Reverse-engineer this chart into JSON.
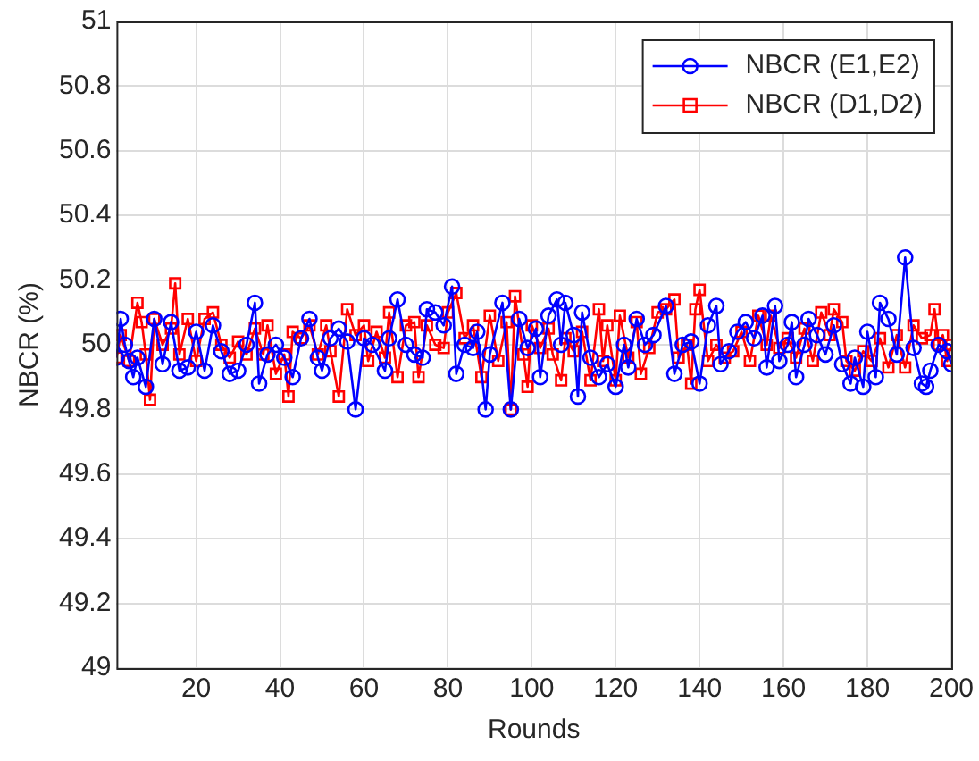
{
  "chart_data": {
    "type": "line",
    "xlabel": "Rounds",
    "ylabel": "NBCR (%)",
    "xlim": [
      1,
      200
    ],
    "xticks": [
      20,
      40,
      60,
      80,
      100,
      120,
      140,
      160,
      180,
      200
    ],
    "ylim": [
      49,
      51
    ],
    "yticks": [
      49,
      49.2,
      49.4,
      49.6,
      49.8,
      50,
      50.2,
      50.4,
      50.6,
      50.8,
      51
    ],
    "grid": true,
    "legend": "top right",
    "line_style": "solid",
    "series": [
      {
        "name": "NBCR (E1,E2)",
        "color": "#0000ff",
        "marker": "circle",
        "x": [
          1,
          2,
          3,
          4,
          5,
          6,
          8,
          10,
          12,
          14,
          16,
          18,
          20,
          22,
          24,
          26,
          28,
          30,
          32,
          34,
          35,
          37,
          39,
          41,
          43,
          45,
          47,
          49,
          50,
          52,
          54,
          56,
          58,
          60,
          62,
          65,
          66,
          68,
          70,
          72,
          74,
          75,
          77,
          79,
          81,
          82,
          84,
          86,
          87,
          89,
          90,
          93,
          95,
          97,
          99,
          101,
          102,
          104,
          106,
          107,
          108,
          110,
          111,
          112,
          114,
          116,
          118,
          120,
          122,
          123,
          125,
          127,
          129,
          132,
          134,
          136,
          138,
          140,
          142,
          144,
          145,
          147,
          149,
          151,
          153,
          155,
          156,
          158,
          159,
          161,
          162,
          163,
          165,
          166,
          168,
          170,
          172,
          174,
          176,
          177,
          179,
          180,
          182,
          183,
          185,
          187,
          189,
          191,
          193,
          194,
          195,
          197,
          199,
          200
        ],
        "values": [
          49.96,
          50.08,
          50.0,
          49.95,
          49.9,
          49.96,
          49.87,
          50.08,
          49.94,
          50.07,
          49.92,
          49.93,
          50.04,
          49.92,
          50.06,
          49.98,
          49.91,
          49.92,
          50.0,
          50.13,
          49.88,
          49.97,
          50.0,
          49.96,
          49.9,
          50.02,
          50.08,
          49.96,
          49.92,
          50.02,
          50.05,
          50.01,
          49.8,
          50.02,
          50.0,
          49.92,
          50.02,
          50.14,
          50.0,
          49.97,
          49.96,
          50.11,
          50.1,
          50.06,
          50.18,
          49.91,
          50.0,
          49.99,
          50.04,
          49.8,
          49.97,
          50.13,
          49.8,
          50.08,
          49.99,
          50.05,
          49.9,
          50.09,
          50.14,
          50.0,
          50.13,
          50.03,
          49.84,
          50.1,
          49.96,
          49.9,
          49.94,
          49.87,
          50.0,
          49.93,
          50.08,
          50.0,
          50.03,
          50.12,
          49.91,
          50.0,
          50.01,
          49.88,
          50.06,
          50.12,
          49.94,
          49.98,
          50.04,
          50.07,
          50.02,
          50.09,
          49.93,
          50.12,
          49.95,
          50.0,
          50.07,
          49.9,
          50.0,
          50.08,
          50.03,
          49.97,
          50.06,
          49.94,
          49.88,
          49.96,
          49.87,
          50.04,
          49.9,
          50.13,
          50.08,
          49.97,
          50.27,
          49.99,
          49.88,
          49.87,
          49.92,
          50.0,
          49.98,
          49.94
        ]
      },
      {
        "name": "NBCR (D1,D2)",
        "color": "#ff0000",
        "marker": "square",
        "x": [
          1,
          2,
          4,
          6,
          7,
          8,
          9,
          10,
          12,
          14,
          15,
          16,
          18,
          20,
          22,
          24,
          26,
          28,
          30,
          32,
          34,
          36,
          37,
          39,
          41,
          42,
          43,
          45,
          47,
          49,
          51,
          52,
          54,
          56,
          58,
          60,
          61,
          63,
          65,
          66,
          68,
          70,
          72,
          73,
          75,
          77,
          79,
          80,
          82,
          84,
          86,
          88,
          90,
          92,
          94,
          95,
          96,
          98,
          99,
          100,
          102,
          104,
          105,
          107,
          108,
          110,
          112,
          114,
          116,
          117,
          118,
          120,
          121,
          123,
          125,
          126,
          128,
          130,
          132,
          134,
          135,
          137,
          138,
          139,
          140,
          142,
          144,
          146,
          148,
          150,
          152,
          154,
          156,
          157,
          159,
          161,
          163,
          165,
          167,
          169,
          171,
          172,
          174,
          175,
          177,
          179,
          181,
          183,
          185,
          187,
          189,
          191,
          193,
          195,
          196,
          197,
          198,
          199,
          200
        ],
        "values": [
          49.96,
          50.03,
          49.95,
          50.13,
          50.07,
          49.97,
          49.83,
          50.08,
          50.0,
          50.05,
          50.19,
          49.97,
          50.08,
          49.95,
          50.08,
          50.1,
          50.0,
          49.96,
          50.01,
          49.97,
          50.05,
          49.97,
          50.06,
          49.91,
          49.97,
          49.84,
          50.04,
          50.02,
          50.06,
          49.97,
          50.06,
          49.98,
          49.84,
          50.11,
          50.03,
          50.06,
          49.95,
          50.04,
          49.96,
          50.1,
          49.9,
          50.06,
          50.07,
          49.9,
          50.06,
          50.0,
          49.99,
          50.1,
          50.16,
          50.02,
          50.06,
          49.9,
          50.09,
          49.95,
          50.07,
          49.8,
          50.15,
          49.97,
          49.87,
          50.06,
          49.99,
          50.05,
          49.97,
          49.89,
          50.02,
          49.98,
          50.04,
          49.89,
          50.11,
          49.95,
          50.06,
          49.89,
          50.09,
          49.96,
          50.07,
          49.91,
          49.99,
          50.1,
          50.11,
          50.14,
          49.96,
          50.0,
          49.88,
          50.11,
          50.17,
          49.95,
          50.0,
          49.96,
          49.98,
          50.04,
          49.95,
          50.09,
          50.0,
          50.09,
          49.99,
          50.02,
          49.96,
          50.05,
          49.95,
          50.1,
          50.03,
          50.11,
          50.07,
          49.95,
          49.92,
          49.98,
          49.95,
          50.02,
          49.93,
          50.03,
          49.93,
          50.06,
          50.02,
          50.03,
          50.11,
          50.0,
          50.03,
          49.95,
          50.0
        ]
      }
    ]
  }
}
